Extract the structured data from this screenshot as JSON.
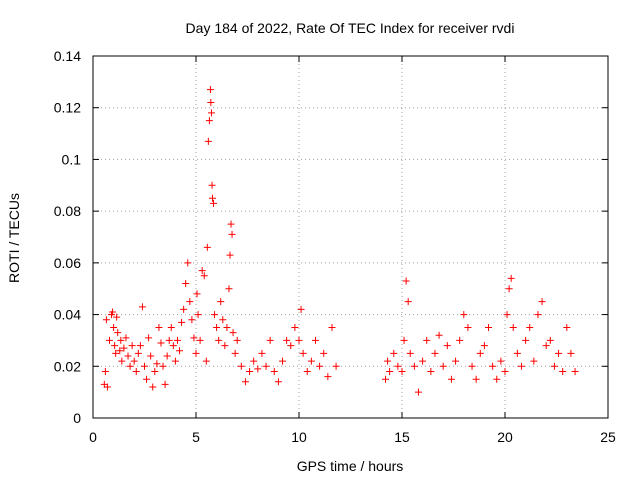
{
  "chart_data": {
    "type": "scatter",
    "title": "Day 184 of 2022, Rate Of TEC Index for receiver rvdi",
    "xlabel": "GPS time / hours",
    "ylabel": "ROTI / TECUs",
    "xlim": [
      0,
      25
    ],
    "ylim": [
      0,
      0.14
    ],
    "x_ticks": [
      0,
      5,
      10,
      15,
      20,
      25
    ],
    "x_tick_labels": [
      "0",
      "5",
      "10",
      "15",
      "20",
      "25"
    ],
    "y_ticks": [
      0,
      0.02,
      0.04,
      0.06,
      0.08,
      0.1,
      0.12,
      0.14
    ],
    "y_tick_labels": [
      "0",
      "0.02",
      "0.04",
      "0.06",
      "0.08",
      "0.1",
      "0.12",
      "0.14"
    ],
    "grid": true,
    "marker": "+",
    "series": [
      {
        "color": "#ff0000",
        "points": [
          [
            0.55,
            0.013
          ],
          [
            0.6,
            0.018
          ],
          [
            0.65,
            0.038
          ],
          [
            0.7,
            0.012
          ],
          [
            0.8,
            0.03
          ],
          [
            0.9,
            0.04
          ],
          [
            0.95,
            0.041
          ],
          [
            1.0,
            0.035
          ],
          [
            1.05,
            0.028
          ],
          [
            1.1,
            0.025
          ],
          [
            1.15,
            0.039
          ],
          [
            1.2,
            0.033
          ],
          [
            1.3,
            0.026
          ],
          [
            1.35,
            0.03
          ],
          [
            1.4,
            0.022
          ],
          [
            1.5,
            0.027
          ],
          [
            1.6,
            0.031
          ],
          [
            1.7,
            0.024
          ],
          [
            1.8,
            0.02
          ],
          [
            1.9,
            0.028
          ],
          [
            2.0,
            0.022
          ],
          [
            2.1,
            0.018
          ],
          [
            2.2,
            0.025
          ],
          [
            2.3,
            0.028
          ],
          [
            2.4,
            0.043
          ],
          [
            2.5,
            0.02
          ],
          [
            2.6,
            0.015
          ],
          [
            2.7,
            0.031
          ],
          [
            2.8,
            0.024
          ],
          [
            2.9,
            0.012
          ],
          [
            3.0,
            0.018
          ],
          [
            3.1,
            0.021
          ],
          [
            3.2,
            0.035
          ],
          [
            3.3,
            0.029
          ],
          [
            3.4,
            0.02
          ],
          [
            3.5,
            0.013
          ],
          [
            3.6,
            0.024
          ],
          [
            3.7,
            0.03
          ],
          [
            3.8,
            0.035
          ],
          [
            3.9,
            0.028
          ],
          [
            4.0,
            0.022
          ],
          [
            4.1,
            0.03
          ],
          [
            4.2,
            0.026
          ],
          [
            4.3,
            0.037
          ],
          [
            4.4,
            0.042
          ],
          [
            4.5,
            0.052
          ],
          [
            4.6,
            0.06
          ],
          [
            4.7,
            0.045
          ],
          [
            4.8,
            0.038
          ],
          [
            4.9,
            0.031
          ],
          [
            5.0,
            0.025
          ],
          [
            5.05,
            0.048
          ],
          [
            5.1,
            0.04
          ],
          [
            5.2,
            0.03
          ],
          [
            5.3,
            0.057
          ],
          [
            5.4,
            0.055
          ],
          [
            5.5,
            0.022
          ],
          [
            5.55,
            0.066
          ],
          [
            5.6,
            0.107
          ],
          [
            5.65,
            0.115
          ],
          [
            5.7,
            0.127
          ],
          [
            5.72,
            0.122
          ],
          [
            5.75,
            0.118
          ],
          [
            5.78,
            0.09
          ],
          [
            5.8,
            0.085
          ],
          [
            5.85,
            0.083
          ],
          [
            5.9,
            0.04
          ],
          [
            6.0,
            0.035
          ],
          [
            6.1,
            0.03
          ],
          [
            6.2,
            0.045
          ],
          [
            6.3,
            0.038
          ],
          [
            6.4,
            0.028
          ],
          [
            6.5,
            0.035
          ],
          [
            6.6,
            0.05
          ],
          [
            6.65,
            0.063
          ],
          [
            6.7,
            0.075
          ],
          [
            6.75,
            0.071
          ],
          [
            6.8,
            0.033
          ],
          [
            6.9,
            0.025
          ],
          [
            7.0,
            0.03
          ],
          [
            7.2,
            0.02
          ],
          [
            7.4,
            0.014
          ],
          [
            7.6,
            0.018
          ],
          [
            7.8,
            0.022
          ],
          [
            8.0,
            0.019
          ],
          [
            8.2,
            0.025
          ],
          [
            8.4,
            0.02
          ],
          [
            8.6,
            0.03
          ],
          [
            8.8,
            0.018
          ],
          [
            9.0,
            0.014
          ],
          [
            9.2,
            0.022
          ],
          [
            9.4,
            0.03
          ],
          [
            9.6,
            0.028
          ],
          [
            9.8,
            0.035
          ],
          [
            10.0,
            0.03
          ],
          [
            10.1,
            0.042
          ],
          [
            10.2,
            0.025
          ],
          [
            10.4,
            0.018
          ],
          [
            10.6,
            0.022
          ],
          [
            10.8,
            0.03
          ],
          [
            11.0,
            0.02
          ],
          [
            11.2,
            0.025
          ],
          [
            11.4,
            0.016
          ],
          [
            11.6,
            0.035
          ],
          [
            11.8,
            0.02
          ],
          [
            14.2,
            0.015
          ],
          [
            14.3,
            0.022
          ],
          [
            14.4,
            0.018
          ],
          [
            14.6,
            0.025
          ],
          [
            14.8,
            0.02
          ],
          [
            15.0,
            0.018
          ],
          [
            15.1,
            0.03
          ],
          [
            15.2,
            0.053
          ],
          [
            15.3,
            0.045
          ],
          [
            15.4,
            0.025
          ],
          [
            15.6,
            0.02
          ],
          [
            15.8,
            0.01
          ],
          [
            16.0,
            0.022
          ],
          [
            16.2,
            0.03
          ],
          [
            16.4,
            0.018
          ],
          [
            16.6,
            0.025
          ],
          [
            16.8,
            0.032
          ],
          [
            17.0,
            0.02
          ],
          [
            17.2,
            0.028
          ],
          [
            17.4,
            0.015
          ],
          [
            17.6,
            0.022
          ],
          [
            17.8,
            0.03
          ],
          [
            18.0,
            0.04
          ],
          [
            18.2,
            0.035
          ],
          [
            18.4,
            0.02
          ],
          [
            18.6,
            0.015
          ],
          [
            18.8,
            0.025
          ],
          [
            19.0,
            0.028
          ],
          [
            19.2,
            0.035
          ],
          [
            19.4,
            0.02
          ],
          [
            19.6,
            0.015
          ],
          [
            19.8,
            0.022
          ],
          [
            20.0,
            0.018
          ],
          [
            20.1,
            0.04
          ],
          [
            20.2,
            0.05
          ],
          [
            20.3,
            0.054
          ],
          [
            20.4,
            0.035
          ],
          [
            20.6,
            0.025
          ],
          [
            20.8,
            0.02
          ],
          [
            21.0,
            0.03
          ],
          [
            21.2,
            0.035
          ],
          [
            21.4,
            0.022
          ],
          [
            21.6,
            0.04
          ],
          [
            21.8,
            0.045
          ],
          [
            22.0,
            0.028
          ],
          [
            22.2,
            0.03
          ],
          [
            22.4,
            0.02
          ],
          [
            22.6,
            0.025
          ],
          [
            22.8,
            0.018
          ],
          [
            23.0,
            0.035
          ],
          [
            23.2,
            0.025
          ],
          [
            23.4,
            0.018
          ]
        ]
      }
    ]
  }
}
